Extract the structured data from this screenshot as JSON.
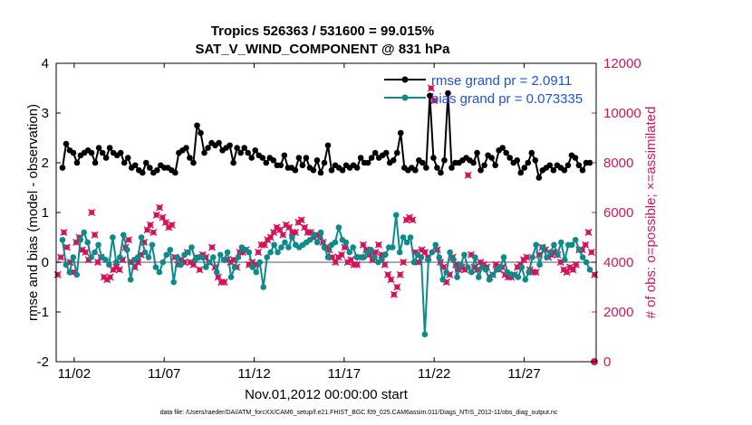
{
  "chart_data": {
    "type": "line",
    "title_line1": "Tropics 526363 / 531600 = 99.015%",
    "title_line2": "SAT_V_WIND_COMPONENT @ 831 hPa",
    "xlabel": "Nov.01,2012 00:00:00 start",
    "ylabel_left": "rmse and bias (model - observation)",
    "ylabel_right": "# of obs: o=possible; ×=assimilated",
    "footer": "data file: /Users/raeder/DAI/ATM_forcXX/CAM6_setup/f.e21.FHIST_BGC.f09_025.CAM6assim.011/Diags_NTrS_2012-11/obs_diag_output.nc",
    "x_tick_labels": [
      "11/02",
      "11/07",
      "11/12",
      "11/17",
      "11/22",
      "11/27"
    ],
    "x_tick_days": [
      2,
      7,
      12,
      17,
      22,
      27
    ],
    "x_range_days": [
      1,
      31
    ],
    "ylim_left": [
      -2,
      4
    ],
    "y_ticks_left": [
      "-2",
      "-1",
      "0",
      "1",
      "2",
      "3",
      "4"
    ],
    "ylim_right": [
      0,
      12000
    ],
    "y_ticks_right": [
      "0",
      "2000",
      "4000",
      "6000",
      "8000",
      "10000",
      "12000"
    ],
    "colors": {
      "rmse": "#000000",
      "bias": "#0e8a8a",
      "obs": "#d4145a",
      "legend_text": "#1f4fe0",
      "zero_line": "#aaaaaa"
    },
    "series": [
      {
        "name": "rmse grand pr = 2.0911",
        "values": [
          1.9,
          2.38,
          2.25,
          2.2,
          2.0,
          2.15,
          2.2,
          2.25,
          2.2,
          2.0,
          2.3,
          2.2,
          2.1,
          2.3,
          2.2,
          2.15,
          2.2,
          2.0,
          2.1,
          1.9,
          1.95,
          1.85,
          1.8,
          2.0,
          1.9,
          1.8,
          1.85,
          1.95,
          1.9,
          1.9,
          1.85,
          1.8,
          2.2,
          2.25,
          2.3,
          2.1,
          2.0,
          2.75,
          2.6,
          2.2,
          2.3,
          2.4,
          2.35,
          2.4,
          2.25,
          2.3,
          2.35,
          2.0,
          2.3,
          2.2,
          2.3,
          2.2,
          2.1,
          2.25,
          2.15,
          2.1,
          2.0,
          2.1,
          2.05,
          1.95,
          1.95,
          2.15,
          1.9,
          1.9,
          1.85,
          2.1,
          1.95,
          2.1,
          1.9,
          1.85,
          2.05,
          1.8,
          2.0,
          2.35,
          1.85,
          1.95,
          1.9,
          1.85,
          1.95,
          1.9,
          1.95,
          1.9,
          2.1,
          2.0,
          2.0,
          2.1,
          2.2,
          2.1,
          2.15,
          2.2,
          2.0,
          2.05,
          2.2,
          2.6,
          1.9,
          1.85,
          1.9,
          1.85,
          2.05,
          2.0,
          1.9,
          3.35,
          2.1,
          1.9,
          1.8,
          2.05,
          3.4,
          1.9,
          2.0,
          2.0,
          2.05,
          2.1,
          2.05,
          2.0,
          2.2,
          1.85,
          1.95,
          2.15,
          2.1,
          1.95,
          2.25,
          2.3,
          2.2,
          2.1,
          2.0,
          2.05,
          1.8,
          1.9,
          2.0,
          2.2,
          2.05,
          1.7,
          1.85,
          1.9,
          1.95,
          1.85,
          1.95,
          1.9,
          1.85,
          1.95,
          2.15,
          2.1,
          1.95,
          1.85,
          2.0,
          2.0
        ]
      },
      {
        "name": "bias grand pr = 0.073335",
        "values": [
          0.45,
          -0.05,
          -0.2,
          0.1,
          -0.25,
          0.45,
          0.6,
          0.4,
          0.1,
          0.2,
          0.35,
          0.1,
          0.05,
          -0.05,
          0.5,
          0.0,
          0.1,
          0.55,
          0.25,
          -0.35,
          0.05,
          0.1,
          0.5,
          0.2,
          0.1,
          0.35,
          -0.1,
          -0.2,
          0.0,
          0.15,
          0.25,
          -0.4,
          0.1,
          -0.05,
          0.15,
          0.2,
          0.3,
          0.05,
          0.1,
          0.1,
          -0.1,
          0.0,
          0.1,
          -0.2,
          0.15,
          0.05,
          0.2,
          -0.3,
          -0.1,
          0.1,
          0.3,
          0.25,
          0.2,
          -0.1,
          -0.2,
          0.0,
          -0.5,
          0.1,
          0.2,
          0.35,
          0.2,
          0.3,
          0.4,
          0.3,
          0.5,
          0.35,
          0.3,
          0.35,
          0.4,
          0.45,
          0.55,
          0.4,
          0.6,
          0.3,
          0.1,
          0.35,
          0.4,
          0.7,
          0.45,
          0.4,
          0.2,
          0.3,
          0.1,
          0.1,
          0.1,
          0.2,
          0.25,
          0.1,
          0.0,
          0.05,
          0.15,
          0.3,
          0.3,
          0.95,
          0.2,
          0.5,
          0.4,
          0.5,
          0.0,
          0.15,
          0.1,
          -1.45,
          0.05,
          0.2,
          0.35,
          0.1,
          -0.35,
          -0.2,
          0.2,
          0.05,
          -0.3,
          -0.05,
          0.15,
          -0.1,
          -0.2,
          0.1,
          -0.3,
          -0.1,
          -0.15,
          -0.35,
          -0.25,
          -0.15,
          -0.1,
          0.1,
          -0.2,
          -0.25,
          -0.25,
          -0.3,
          -0.1,
          -0.35,
          -0.2,
          0.1,
          0.35,
          -0.05,
          0.3,
          0.1,
          0.2,
          0.35,
          0.15,
          0.4,
          0.05,
          0.35,
          0.35,
          0.45,
          0.25,
          0.1,
          0.0,
          -0.15
        ]
      },
      {
        "name": "# obs (assimilated)",
        "values": [
          3500,
          4200,
          5200,
          4600,
          4000,
          3600,
          4800,
          5000,
          4500,
          4400,
          4100,
          6000,
          5100,
          4000,
          4200,
          3400,
          3300,
          3400,
          3700,
          3800,
          3700,
          4100,
          4600,
          4900,
          4000,
          3800,
          4000,
          4300,
          4800,
          5300,
          5500,
          5200,
          5900,
          6200,
          5800,
          5600,
          5400,
          5500,
          4200,
          3900,
          4100,
          4000,
          4400,
          4000,
          3900,
          4200,
          3700,
          4300,
          4200,
          4000,
          4600,
          3800,
          3400,
          3200,
          3200,
          4100,
          4000,
          4100,
          3800,
          4400,
          4400,
          4500,
          3900,
          4000,
          3900,
          4400,
          4700,
          4700,
          4900,
          5000,
          5200,
          5400,
          5300,
          5100,
          5500,
          5400,
          5200,
          5200,
          5600,
          5700,
          5400,
          5200,
          5200,
          5000,
          5100,
          5000,
          4800,
          4600,
          4500,
          4200,
          4000,
          4200,
          4300,
          4600,
          4000,
          4100,
          3900,
          3900,
          4200,
          4700,
          4500,
          4300,
          4100,
          4400,
          4700,
          4300,
          3900,
          3500,
          3300,
          2700,
          3000,
          3500,
          4000,
          5700,
          5800,
          5700,
          4400,
          4000,
          4500,
          4400,
          4200,
          11000,
          10500,
          4500,
          4000,
          3800,
          3200,
          3500,
          4200,
          3900,
          3700,
          3800,
          3700,
          7500,
          4300,
          3800,
          3700,
          4000,
          3900,
          3800,
          3400,
          3500,
          3900,
          3700,
          3800,
          3500,
          3400,
          3400,
          3500,
          3800,
          3900,
          4100,
          4200,
          3700,
          3600,
          3600,
          4300,
          4600,
          4500,
          4200,
          4300,
          4400,
          4300,
          4000,
          3700,
          3600,
          3800,
          3700,
          3900,
          4500,
          4500,
          4700,
          5200,
          4400,
          3500
        ]
      }
    ],
    "obs_last_possible": 0
  }
}
